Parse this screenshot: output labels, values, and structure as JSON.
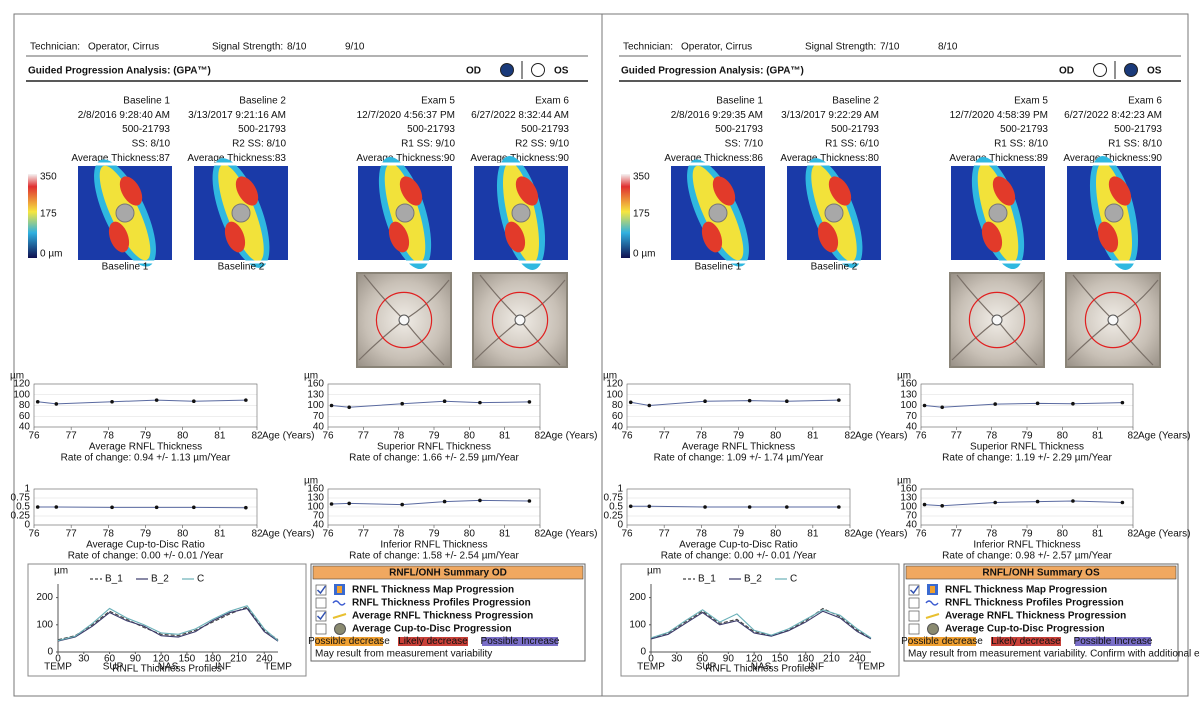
{
  "panels": [
    {
      "header": {
        "technician_label": "Technician:",
        "technician": "Operator, Cirrus",
        "signal_label": "Signal Strength:",
        "signals": [
          "8/10",
          "9/10"
        ]
      },
      "title": "Guided Progression Analysis: (GPA™)",
      "eyes": [
        "OD",
        "OS"
      ],
      "selected_eye": 0,
      "scale_labels": [
        "350",
        "175",
        "0 µm"
      ],
      "exams": [
        {
          "lines": [
            "Baseline 1",
            "2/8/2016 9:28:40 AM",
            "500-21793",
            "SS: 8/10",
            "Average Thickness:87"
          ],
          "caption": "Baseline 1"
        },
        {
          "lines": [
            "Baseline 2",
            "3/13/2017 9:21:16 AM",
            "500-21793",
            "R2  SS: 8/10",
            "Average Thickness:83"
          ],
          "caption": "Baseline 2"
        },
        {
          "lines": [
            "Exam 5",
            "12/7/2020 4:56:37 PM",
            "500-21793",
            "R1  SS: 9/10",
            "Average Thickness:90"
          ]
        },
        {
          "lines": [
            "Exam 6",
            "6/27/2022 8:32:44 AM",
            "500-21793",
            "R2  SS: 9/10",
            "Average Thickness:90"
          ]
        }
      ],
      "trend_charts": [
        {
          "title": "Average RNFL Thickness",
          "rate": "Rate of change: 0.94 +/- 1.13 µm/Year",
          "y_unit": "µm",
          "x_label": "Age (Years)",
          "xlim": [
            76,
            82
          ],
          "xticks": [
            76,
            77,
            78,
            79,
            80,
            81,
            82
          ],
          "ylim": [
            40,
            120
          ],
          "yticks": [
            40,
            60,
            80,
            100,
            120
          ],
          "x": [
            76.1,
            76.6,
            78.1,
            79.3,
            80.3,
            81.7
          ],
          "values": [
            87,
            83,
            87,
            90,
            88,
            90
          ]
        },
        {
          "title": "Superior RNFL Thickness",
          "rate": "Rate of change: 1.66 +/- 2.59 µm/Year",
          "y_unit": "µm",
          "x_label": "Age (Years)",
          "xlim": [
            76,
            82
          ],
          "xticks": [
            76,
            77,
            78,
            79,
            80,
            81,
            82
          ],
          "ylim": [
            40,
            160
          ],
          "yticks": [
            40,
            70,
            100,
            130,
            160
          ],
          "x": [
            76.1,
            76.6,
            78.1,
            79.3,
            80.3,
            81.7
          ],
          "values": [
            100,
            95,
            105,
            112,
            108,
            110
          ]
        },
        {
          "title": "Average Cup-to-Disc Ratio",
          "rate": "Rate of change: 0.00 +/- 0.01  /Year",
          "x_label": "Age (Years)",
          "xlim": [
            76,
            82
          ],
          "xticks": [
            76,
            77,
            78,
            79,
            80,
            81,
            82
          ],
          "ylim": [
            0,
            1
          ],
          "yticks": [
            0,
            0.25,
            0.5,
            0.75,
            1
          ],
          "x": [
            76.1,
            76.6,
            78.1,
            79.3,
            80.3,
            81.7
          ],
          "values": [
            0.5,
            0.5,
            0.49,
            0.49,
            0.49,
            0.48
          ]
        },
        {
          "title": "Inferior RNFL Thickness",
          "rate": "Rate of change: 1.58 +/- 2.54 µm/Year",
          "y_unit": "µm",
          "x_label": "Age (Years)",
          "xlim": [
            76,
            82
          ],
          "xticks": [
            76,
            77,
            78,
            79,
            80,
            81,
            82
          ],
          "ylim": [
            40,
            160
          ],
          "yticks": [
            40,
            70,
            100,
            130,
            160
          ],
          "x": [
            76.1,
            76.6,
            78.1,
            79.3,
            80.3,
            81.7
          ],
          "values": [
            110,
            112,
            108,
            118,
            122,
            120
          ]
        }
      ],
      "profile": {
        "title": "RNFL Thickness Profiles",
        "y_unit": "µm",
        "xlim": [
          0,
          256
        ],
        "xticks": [
          0,
          30,
          60,
          90,
          120,
          150,
          180,
          210,
          240
        ],
        "ylim": [
          0,
          250
        ],
        "yticks": [
          0,
          100,
          200
        ],
        "regions": [
          {
            "value": 0,
            "label": "TEMP"
          },
          {
            "value": 64,
            "label": "SUP"
          },
          {
            "value": 128,
            "label": "NAS"
          },
          {
            "value": 192,
            "label": "INF"
          },
          {
            "value": 256,
            "label": "TEMP"
          }
        ],
        "x": [
          0,
          20,
          40,
          60,
          80,
          100,
          120,
          140,
          160,
          180,
          200,
          220,
          240,
          256
        ],
        "series": [
          {
            "name": "B_1",
            "color": "#444444",
            "dash": true,
            "values": [
              45,
              60,
              100,
              150,
              120,
              90,
              65,
              60,
              80,
              110,
              140,
              165,
              80,
              45
            ]
          },
          {
            "name": "B_2",
            "color": "#3a3a6a",
            "values": [
              40,
              55,
              95,
              145,
              115,
              95,
              60,
              55,
              75,
              115,
              145,
              160,
              75,
              40
            ]
          },
          {
            "name": "C",
            "color": "#6ab0b8",
            "values": [
              42,
              58,
              105,
              160,
              125,
              100,
              70,
              65,
              85,
              120,
              150,
              170,
              85,
              42
            ]
          }
        ]
      },
      "summary": {
        "title": "RNFL/ONH Summary OD",
        "items": [
          {
            "label": "RNFL Thickness Map Progression",
            "checked": true
          },
          {
            "label": "RNFL Thickness Profiles Progression",
            "checked": false
          },
          {
            "label": "Average RNFL Thickness Progression",
            "checked": true
          },
          {
            "label": "Average Cup-to-Disc Progression",
            "checked": false
          }
        ],
        "legend": [
          {
            "label": "Possible decrease",
            "color": "#f0a030"
          },
          {
            "label": "Likely decrease",
            "color": "#c84038"
          },
          {
            "label": "Possible Increase",
            "color": "#7a6fc8"
          }
        ],
        "note": "May result from measurement variability"
      }
    },
    {
      "header": {
        "technician_label": "Technician:",
        "technician": "Operator, Cirrus",
        "signal_label": "Signal Strength:",
        "signals": [
          "7/10",
          "8/10"
        ]
      },
      "title": "Guided Progression Analysis: (GPA™)",
      "eyes": [
        "OD",
        "OS"
      ],
      "selected_eye": 1,
      "scale_labels": [
        "350",
        "175",
        "0 µm"
      ],
      "exams": [
        {
          "lines": [
            "Baseline 1",
            "2/8/2016 9:29:35 AM",
            "500-21793",
            "SS: 7/10",
            "Average Thickness:86"
          ],
          "caption": "Baseline 1"
        },
        {
          "lines": [
            "Baseline 2",
            "3/13/2017 9:22:29 AM",
            "500-21793",
            "R1  SS: 6/10",
            "Average Thickness:80"
          ],
          "caption": "Baseline 2"
        },
        {
          "lines": [
            "Exam 5",
            "12/7/2020 4:58:39 PM",
            "500-21793",
            "R1  SS: 8/10",
            "Average Thickness:89"
          ]
        },
        {
          "lines": [
            "Exam 6",
            "6/27/2022 8:42:23 AM",
            "500-21793",
            "R1  SS: 8/10",
            "Average Thickness:90"
          ]
        }
      ],
      "trend_charts": [
        {
          "title": "Average RNFL Thickness",
          "rate": "Rate of change: 1.09 +/- 1.74 µm/Year",
          "y_unit": "µm",
          "x_label": "Age (Years)",
          "xlim": [
            76,
            82
          ],
          "xticks": [
            76,
            77,
            78,
            79,
            80,
            81,
            82
          ],
          "ylim": [
            40,
            120
          ],
          "yticks": [
            40,
            60,
            80,
            100,
            120
          ],
          "x": [
            76.1,
            76.6,
            78.1,
            79.3,
            80.3,
            81.7
          ],
          "values": [
            86,
            80,
            88,
            89,
            88,
            90
          ]
        },
        {
          "title": "Superior RNFL Thickness",
          "rate": "Rate of change: 1.19 +/- 2.29 µm/Year",
          "y_unit": "µm",
          "x_label": "Age (Years)",
          "xlim": [
            76,
            82
          ],
          "xticks": [
            76,
            77,
            78,
            79,
            80,
            81,
            82
          ],
          "ylim": [
            40,
            160
          ],
          "yticks": [
            40,
            70,
            100,
            130,
            160
          ],
          "x": [
            76.1,
            76.6,
            78.1,
            79.3,
            80.3,
            81.7
          ],
          "values": [
            100,
            95,
            104,
            106,
            105,
            108
          ]
        },
        {
          "title": "Average Cup-to-Disc Ratio",
          "rate": "Rate of change: 0.00 +/- 0.01  /Year",
          "x_label": "Age (Years)",
          "xlim": [
            76,
            82
          ],
          "xticks": [
            76,
            77,
            78,
            79,
            80,
            81,
            82
          ],
          "ylim": [
            0,
            1
          ],
          "yticks": [
            0,
            0.25,
            0.5,
            0.75,
            1
          ],
          "x": [
            76.1,
            76.6,
            78.1,
            79.3,
            80.3,
            81.7
          ],
          "values": [
            0.52,
            0.52,
            0.5,
            0.5,
            0.5,
            0.5
          ]
        },
        {
          "title": "Inferior RNFL Thickness",
          "rate": "Rate of change: 0.98 +/- 2.57 µm/Year",
          "y_unit": "µm",
          "x_label": "Age (Years)",
          "xlim": [
            76,
            82
          ],
          "xticks": [
            76,
            77,
            78,
            79,
            80,
            81,
            82
          ],
          "ylim": [
            40,
            160
          ],
          "yticks": [
            40,
            70,
            100,
            130,
            160
          ],
          "x": [
            76.1,
            76.6,
            78.1,
            79.3,
            80.3,
            81.7
          ],
          "values": [
            108,
            104,
            115,
            118,
            120,
            115
          ]
        }
      ],
      "profile": {
        "title": "RNFL Thickness Profiles",
        "y_unit": "µm",
        "xlim": [
          0,
          256
        ],
        "xticks": [
          0,
          30,
          60,
          90,
          120,
          150,
          180,
          210,
          240
        ],
        "ylim": [
          0,
          250
        ],
        "yticks": [
          0,
          100,
          200
        ],
        "regions": [
          {
            "value": 0,
            "label": "TEMP"
          },
          {
            "value": 64,
            "label": "SUP"
          },
          {
            "value": 128,
            "label": "NAS"
          },
          {
            "value": 192,
            "label": "INF"
          },
          {
            "value": 256,
            "label": "TEMP"
          }
        ],
        "x": [
          0,
          20,
          40,
          60,
          80,
          100,
          120,
          140,
          160,
          180,
          200,
          220,
          240,
          256
        ],
        "series": [
          {
            "name": "B_1",
            "color": "#444444",
            "dash": true,
            "values": [
              50,
              70,
              110,
              150,
              105,
              120,
              75,
              60,
              80,
              115,
              160,
              130,
              80,
              50
            ]
          },
          {
            "name": "B_2",
            "color": "#3a3a6a",
            "values": [
              48,
              65,
              105,
              145,
              100,
              115,
              70,
              58,
              78,
              110,
              150,
              125,
              75,
              48
            ]
          },
          {
            "name": "C",
            "color": "#6ab0b8",
            "values": [
              52,
              72,
              115,
              155,
              110,
              140,
              80,
              62,
              85,
              120,
              155,
              135,
              85,
              52
            ]
          }
        ]
      },
      "summary": {
        "title": "RNFL/ONH Summary OS",
        "items": [
          {
            "label": "RNFL Thickness Map Progression",
            "checked": true
          },
          {
            "label": "RNFL Thickness Profiles Progression",
            "checked": false
          },
          {
            "label": "Average RNFL Thickness Progression",
            "checked": false
          },
          {
            "label": "Average Cup-to-Disc Progression",
            "checked": false
          }
        ],
        "legend": [
          {
            "label": "Possible decrease",
            "color": "#f0a030"
          },
          {
            "label": "Likely decrease",
            "color": "#c84038"
          },
          {
            "label": "Possible Increase",
            "color": "#7a6fc8"
          }
        ],
        "note": "May result from measurement variability. Confirm with additional exams."
      }
    }
  ]
}
